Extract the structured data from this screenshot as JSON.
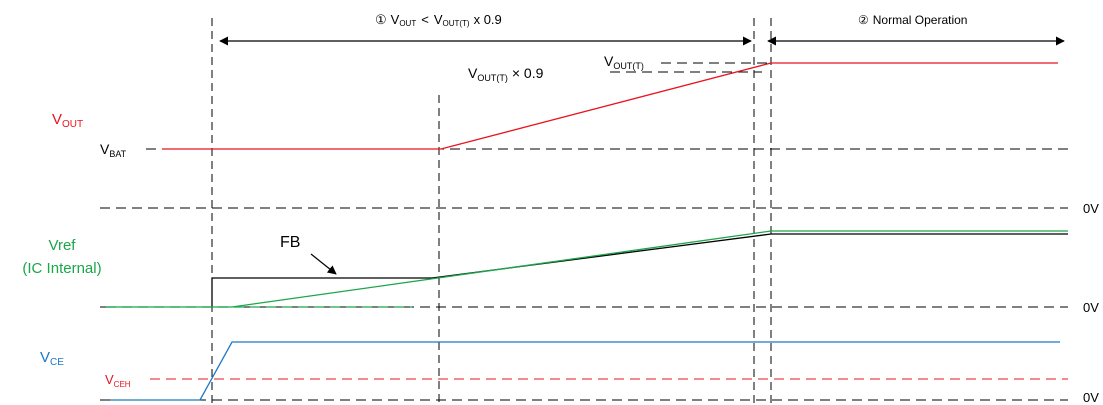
{
  "phases": {
    "phase1": {
      "marker": "①",
      "v": "V",
      "out_sub": "OUT",
      "lt": "<",
      "v2": "V",
      "outt_sub": "OUT(T)",
      "tail": "x 0.9"
    },
    "phase2": {
      "marker": "②",
      "label": "Normal Operation"
    }
  },
  "annotations": {
    "voutt_x09": {
      "v": "V",
      "sub": "OUT(T)",
      "tail": "× 0.9"
    },
    "voutt": {
      "v": "V",
      "sub": "OUT(T)"
    },
    "fb": "FB"
  },
  "labels": {
    "vout": {
      "v": "V",
      "sub": "OUT"
    },
    "vbat": {
      "v": "V",
      "sub": "BAT"
    },
    "vref_line1": "Vref",
    "vref_line2": "(IC Internal)",
    "vce": {
      "v": "V",
      "sub": "CE"
    },
    "vceh": {
      "v": "V",
      "sub": "CEH"
    },
    "zero_1": "0V",
    "zero_2": "0V",
    "zero_3": "0V"
  },
  "colors": {
    "vout": "#e8141e",
    "vref": "#1aa64a",
    "vce": "#1f77c4",
    "fb": "#000000",
    "dashed": "#000000"
  }
}
